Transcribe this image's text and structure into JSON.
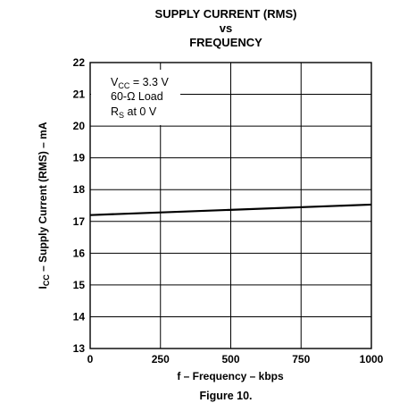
{
  "chart_data": {
    "type": "line",
    "title_lines": [
      "SUPPLY CURRENT (RMS)",
      "vs",
      "FREQUENCY"
    ],
    "xlabel": "f – Frequency – kbps",
    "ylabel": {
      "symbol": "I",
      "subscript": "CC",
      "rest": " – Supply Current (RMS) – mA"
    },
    "xlim": [
      0,
      1000
    ],
    "ylim": [
      13,
      22
    ],
    "x_ticks": [
      0,
      250,
      500,
      750,
      1000
    ],
    "y_ticks": [
      13,
      14,
      15,
      16,
      17,
      18,
      19,
      20,
      21,
      22
    ],
    "grid": true,
    "series": [
      {
        "x": [
          0,
          1000
        ],
        "y": [
          17.2,
          17.53
        ]
      }
    ],
    "annotation": {
      "line1": {
        "symbol": "V",
        "subscript": "CC",
        "rest": " = 3.3 V"
      },
      "line2": "60-Ω Load",
      "line3": {
        "symbol": "R",
        "subscript": "S",
        "rest": " at 0 V"
      }
    },
    "caption": "Figure 10."
  }
}
